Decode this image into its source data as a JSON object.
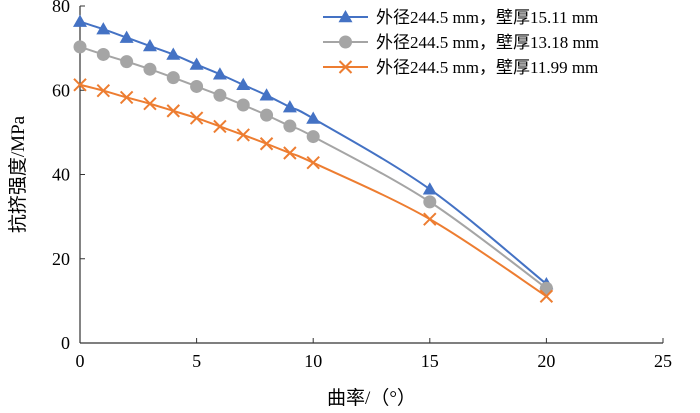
{
  "chart_data": {
    "type": "line",
    "xlabel": "曲率/（°）",
    "ylabel": "抗挤强度/MPa",
    "xlim": [
      0,
      25
    ],
    "ylim": [
      0,
      80
    ],
    "xticks": [
      0,
      5,
      10,
      15,
      20,
      25
    ],
    "yticks": [
      0,
      20,
      40,
      60,
      80
    ],
    "grid": false,
    "legend_position": "top-right",
    "series": [
      {
        "name": "外径244.5 mm，壁厚15.11 mm",
        "color": "#4472C4",
        "marker": "triangle",
        "x": [
          0,
          1,
          2,
          3,
          4,
          5,
          6,
          7,
          8,
          9,
          10,
          15,
          20
        ],
        "y": [
          76.3,
          74.5,
          72.5,
          70.5,
          68.5,
          66.1,
          63.8,
          61.3,
          58.8,
          56.0,
          53.3,
          36.5,
          14.0
        ]
      },
      {
        "name": "外径244.5 mm，壁厚13.18 mm",
        "color": "#A5A5A5",
        "marker": "circle",
        "x": [
          0,
          1,
          2,
          3,
          4,
          5,
          6,
          7,
          8,
          9,
          10,
          15,
          20
        ],
        "y": [
          70.3,
          68.5,
          66.8,
          65.0,
          63.0,
          60.9,
          58.8,
          56.5,
          54.1,
          51.5,
          49.0,
          33.5,
          13.0
        ]
      },
      {
        "name": "外径244.5 mm，壁厚11.99 mm",
        "color": "#ED7D31",
        "marker": "x",
        "x": [
          0,
          1,
          2,
          3,
          4,
          5,
          6,
          7,
          8,
          9,
          10,
          15,
          20
        ],
        "y": [
          61.3,
          59.9,
          58.3,
          56.8,
          55.1,
          53.4,
          51.4,
          49.4,
          47.3,
          45.1,
          42.8,
          29.4,
          11.1
        ]
      }
    ]
  }
}
